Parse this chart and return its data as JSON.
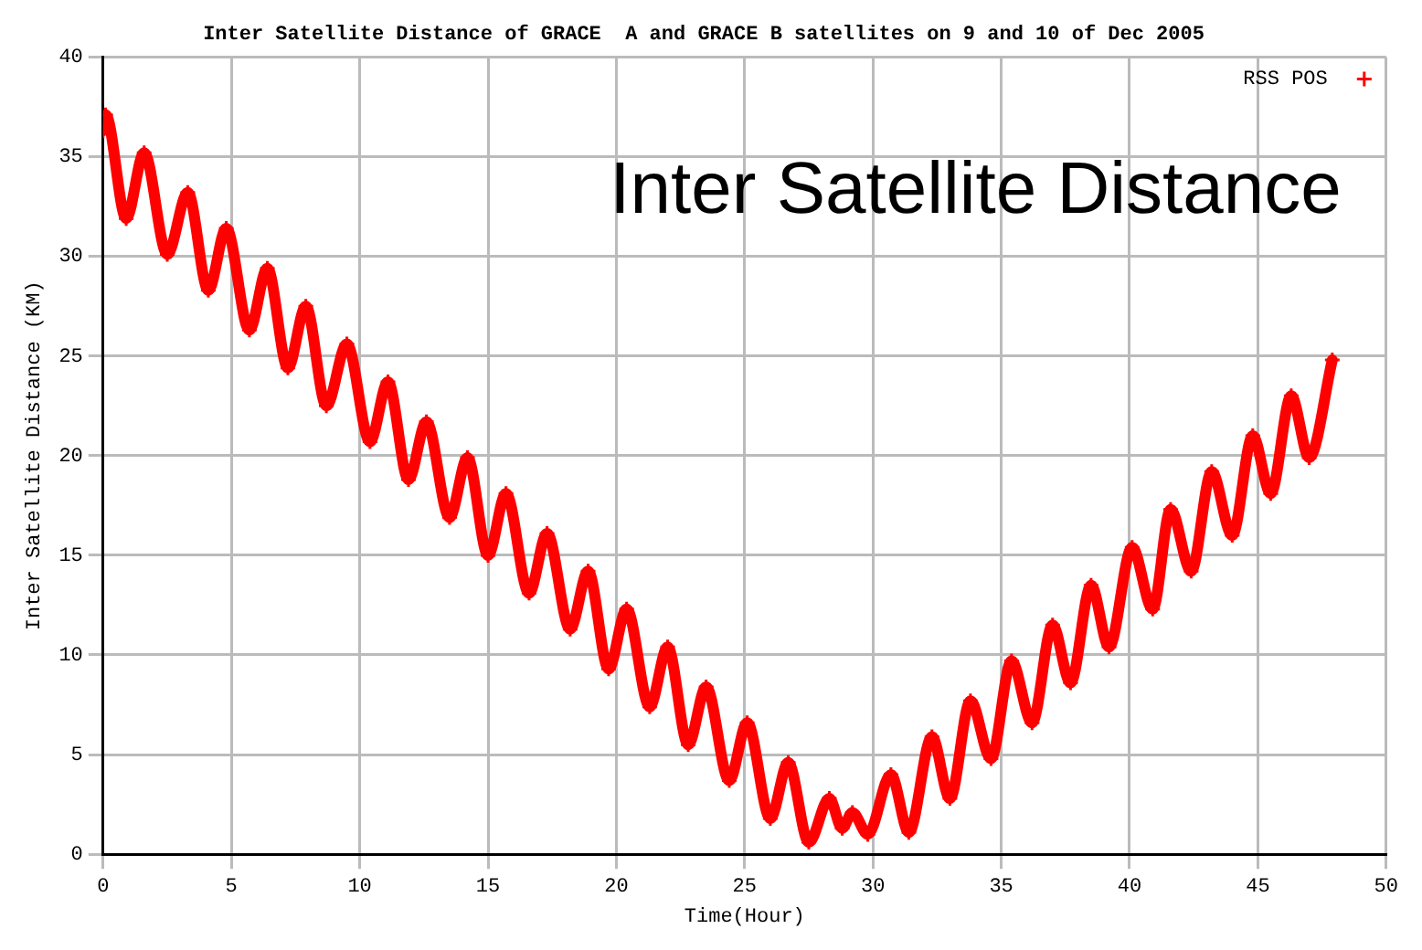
{
  "chart_data": {
    "type": "line",
    "title": "Inter Satellite Distance of GRACE  A and GRACE B satellites on 9 and 10 of Dec 2005",
    "xlabel": "Time(Hour)",
    "ylabel": "Inter Satellite Distance (KM)",
    "annotations": [
      "Inter Satellite Distance"
    ],
    "series": [
      {
        "name": "RSS POS",
        "color": "#ff0000",
        "x": [
          0,
          0.1,
          0.9,
          1.6,
          2.5,
          3.3,
          4.1,
          4.8,
          5.7,
          6.4,
          7.2,
          7.9,
          8.7,
          9.5,
          10.4,
          11.1,
          11.9,
          12.6,
          13.5,
          14.2,
          15.0,
          15.7,
          16.6,
          17.3,
          18.2,
          18.9,
          19.7,
          20.4,
          21.3,
          22.0,
          22.8,
          23.5,
          24.4,
          25.1,
          26.0,
          26.7,
          27.5,
          28.3,
          28.8,
          29.2,
          29.8,
          30.7,
          31.4,
          32.3,
          33.0,
          33.8,
          34.6,
          35.4,
          36.2,
          37.0,
          37.7,
          38.5,
          39.2,
          40.1,
          40.9,
          41.6,
          42.4,
          43.2,
          44.0,
          44.8,
          45.5,
          46.3,
          47.0,
          47.9
        ],
        "values": [
          36.3,
          37.1,
          31.9,
          35.2,
          30.1,
          33.2,
          28.3,
          31.4,
          26.3,
          29.4,
          24.4,
          27.5,
          22.5,
          25.6,
          20.7,
          23.7,
          18.8,
          21.7,
          16.9,
          19.9,
          15.0,
          18.1,
          13.1,
          16.1,
          11.3,
          14.2,
          9.3,
          12.3,
          7.4,
          10.4,
          5.5,
          8.4,
          3.7,
          6.6,
          1.8,
          4.6,
          0.6,
          2.8,
          1.3,
          2.1,
          1.0,
          4.0,
          1.1,
          5.9,
          2.8,
          7.7,
          4.8,
          9.7,
          6.6,
          11.5,
          8.6,
          13.5,
          10.4,
          15.4,
          12.3,
          17.3,
          14.2,
          19.2,
          16.0,
          21.0,
          18.1,
          23.0,
          19.9,
          24.8
        ]
      }
    ],
    "xlim": [
      0,
      50
    ],
    "xticks": [
      0,
      5,
      10,
      15,
      20,
      25,
      30,
      35,
      40,
      45,
      50
    ],
    "ylim": [
      0,
      40
    ],
    "yticks": [
      0,
      5,
      10,
      15,
      20,
      25,
      30,
      35,
      40
    ],
    "grid": true,
    "legend": "top right",
    "marker": "cross",
    "line_style": "solid"
  }
}
